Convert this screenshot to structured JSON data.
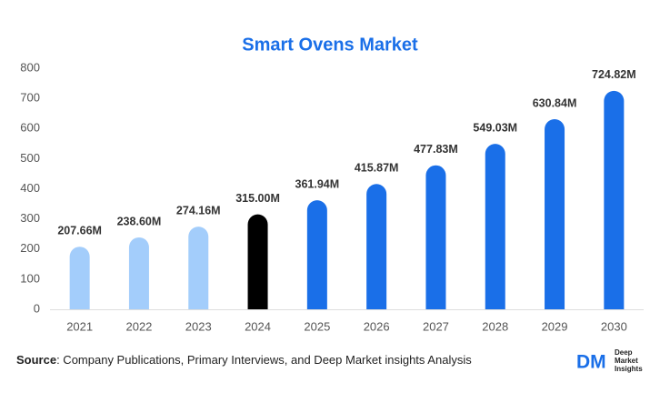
{
  "chart_data": {
    "type": "bar",
    "title": "Smart Ovens Market",
    "categories": [
      "2021",
      "2022",
      "2023",
      "2024",
      "2025",
      "2026",
      "2027",
      "2028",
      "2029",
      "2030"
    ],
    "values": [
      207.66,
      238.6,
      274.16,
      315.0,
      361.94,
      415.87,
      477.83,
      549.03,
      630.84,
      724.82
    ],
    "value_labels": [
      "207.66M",
      "238.60M",
      "274.16M",
      "315.00M",
      "361.94M",
      "415.87M",
      "477.83M",
      "549.03M",
      "630.84M",
      "724.82M"
    ],
    "colors": [
      "#a3cdfb",
      "#a3cdfb",
      "#a3cdfb",
      "#000000",
      "#1a6fe8",
      "#1a6fe8",
      "#1a6fe8",
      "#1a6fe8",
      "#1a6fe8",
      "#1a6fe8"
    ],
    "ylim": [
      0,
      800
    ],
    "yticks": [
      0,
      100,
      200,
      300,
      400,
      500,
      600,
      700,
      800
    ],
    "grid": false
  },
  "source": {
    "label": "Source",
    "text": ": Company Publications, Primary Interviews, and Deep Market insights Analysis"
  },
  "logo": {
    "mark": "DM",
    "lines": [
      "Deep",
      "Market",
      "Insights"
    ]
  }
}
